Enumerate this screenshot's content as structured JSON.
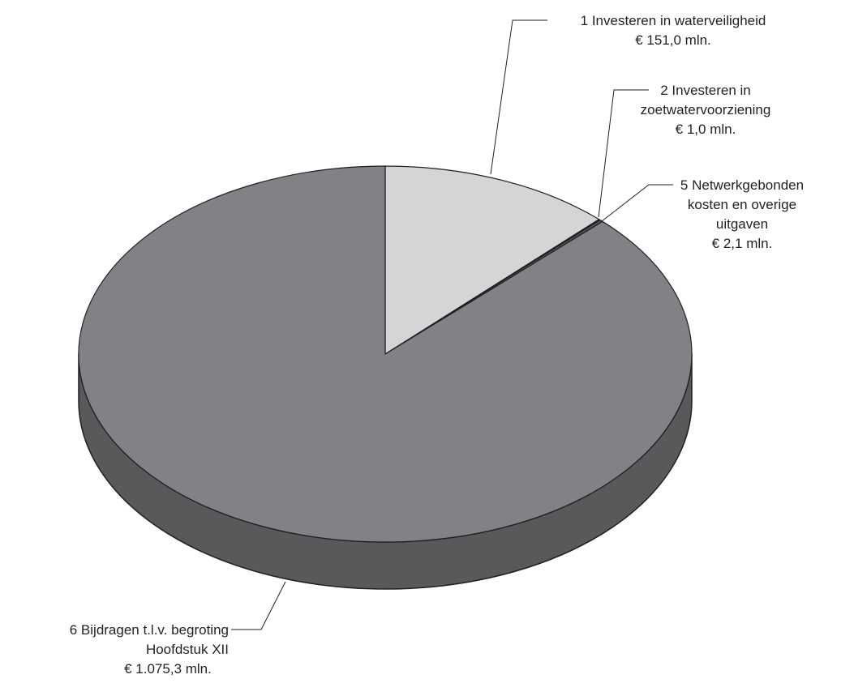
{
  "chart_data": {
    "type": "pie3d",
    "categories": [
      [
        "1 Investeren in waterveiligheid"
      ],
      [
        "2 Investeren in",
        "zoetwatervoorziening"
      ],
      [
        "5 Netwerkgebonden",
        "kosten en overige",
        "uitgaven"
      ],
      [
        "6 Bijdragen t.l.v. begroting",
        "Hoofdstuk XII"
      ]
    ],
    "values": [
      151.0,
      1.0,
      2.1,
      1075.3
    ],
    "value_labels": [
      "€ 151,0 mln.",
      "€ 1,0 mln.",
      "€ 2,1 mln.",
      "€ 1.075,3 mln."
    ],
    "colors": [
      "#d4d5d7",
      "#231f20",
      "#58595b",
      "#818285"
    ]
  }
}
